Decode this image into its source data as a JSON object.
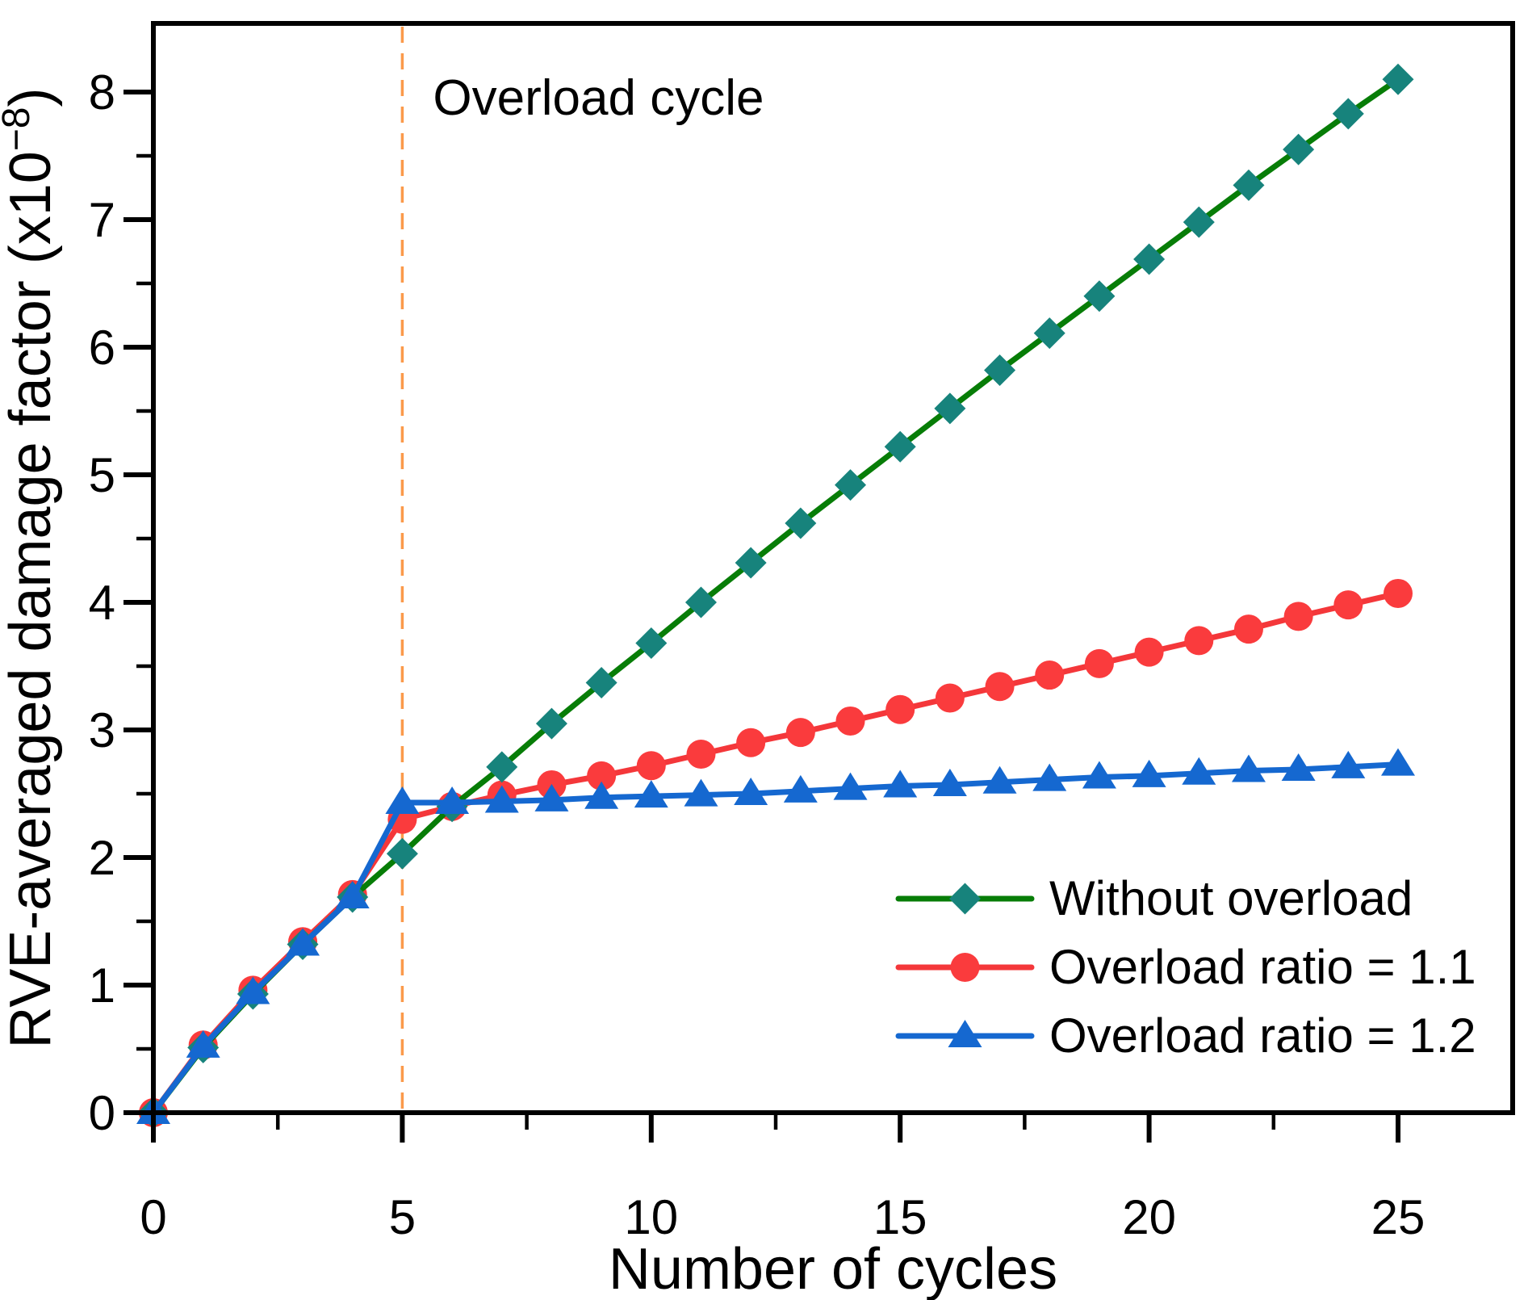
{
  "chart_data": {
    "type": "line",
    "title": "",
    "xlabel": "Number of cycles",
    "ylabel": "RVE-averaged damage factor (x10−8)",
    "ylabel_parts": {
      "base": "RVE-averaged damage factor (x10",
      "superscript": "−8",
      "close": ")"
    },
    "x_axis": {
      "range": [
        0,
        27.3
      ],
      "major_ticks": [
        0,
        5,
        10,
        15,
        20,
        25
      ],
      "major_tick_labels": [
        "0",
        "5",
        "10",
        "15",
        "20",
        "25"
      ],
      "minor_ticks": [
        2.5,
        7.5,
        12.5,
        17.5,
        22.5
      ]
    },
    "y_axis": {
      "range": [
        0,
        8.53
      ],
      "major_ticks": [
        0,
        1,
        2,
        3,
        4,
        5,
        6,
        7,
        8
      ],
      "major_tick_labels": [
        "0",
        "1",
        "2",
        "3",
        "4",
        "5",
        "6",
        "7",
        "8"
      ],
      "minor_ticks": [
        0.5,
        1.5,
        2.5,
        3.5,
        4.5,
        5.5,
        6.5,
        7.5
      ]
    },
    "x": [
      0,
      1,
      2,
      3,
      4,
      5,
      6,
      7,
      8,
      9,
      10,
      11,
      12,
      13,
      14,
      15,
      16,
      17,
      18,
      19,
      20,
      21,
      22,
      23,
      24,
      25
    ],
    "series": [
      {
        "name": "Without overload",
        "marker": "diamond",
        "line_color": "#077d07",
        "marker_color": "#17837c",
        "values": [
          0,
          0.51,
          0.93,
          1.32,
          1.69,
          2.03,
          2.4,
          2.71,
          3.05,
          3.37,
          3.68,
          4.0,
          4.31,
          4.62,
          4.92,
          5.22,
          5.52,
          5.82,
          6.11,
          6.4,
          6.69,
          6.98,
          7.27,
          7.55,
          7.83,
          8.1
        ]
      },
      {
        "name": "Overload ratio = 1.1",
        "marker": "circle",
        "line_color": "#f4373a",
        "marker_color": "#fa3b3d",
        "values": [
          0,
          0.53,
          0.96,
          1.34,
          1.71,
          2.3,
          2.4,
          2.49,
          2.57,
          2.64,
          2.72,
          2.81,
          2.9,
          2.98,
          3.07,
          3.16,
          3.25,
          3.34,
          3.43,
          3.52,
          3.61,
          3.7,
          3.79,
          3.89,
          3.98,
          4.07
        ]
      },
      {
        "name": "Overload ratio = 1.2",
        "marker": "triangle",
        "line_color": "#1568d0",
        "marker_color": "#1568d0",
        "values": [
          0,
          0.52,
          0.94,
          1.32,
          1.69,
          2.43,
          2.43,
          2.44,
          2.45,
          2.47,
          2.48,
          2.49,
          2.5,
          2.52,
          2.54,
          2.56,
          2.57,
          2.59,
          2.61,
          2.63,
          2.64,
          2.66,
          2.68,
          2.69,
          2.71,
          2.73
        ]
      }
    ],
    "draw_order": [
      1,
      0,
      2
    ],
    "annotation": {
      "label": "Overload cycle",
      "x_value": 5,
      "line_color": "#fb9a4b",
      "label_color": "#000000"
    },
    "legend_position": "bottom-right",
    "grid": false,
    "axis_color": "#000000"
  }
}
